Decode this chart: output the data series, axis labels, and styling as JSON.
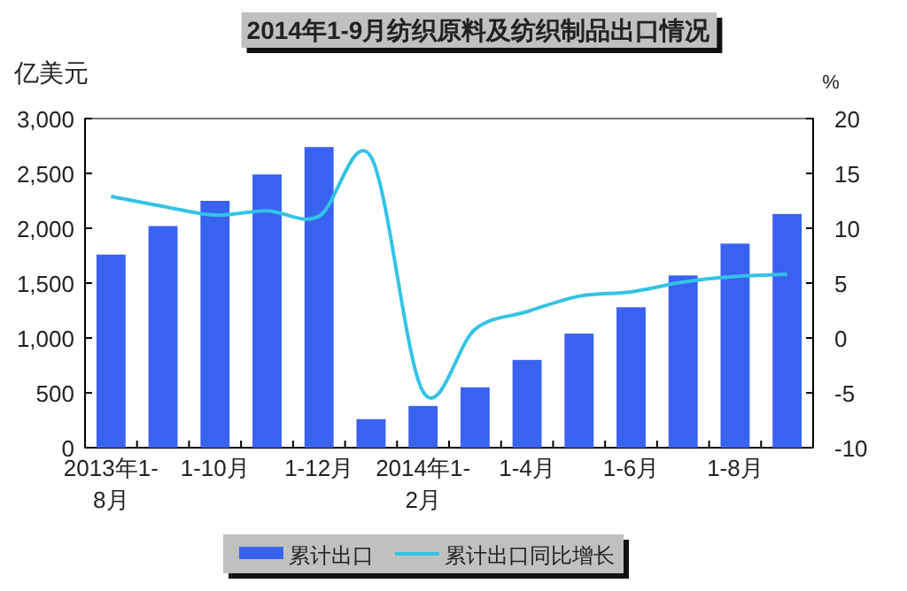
{
  "chart_data": {
    "type": "bar",
    "title": "2014年1-9月纺织原料及纺织制品出口情况",
    "ylabel": "亿美元",
    "y2label": "%",
    "categories": [
      "2013年1-8月",
      null,
      "1-10月",
      null,
      "1-12月",
      null,
      "2014年1-2月",
      null,
      "1-4月",
      null,
      "1-6月",
      null,
      "1-8月",
      null
    ],
    "series": [
      {
        "name": "累计出口",
        "color": "#3a62f0",
        "values": [
          1760,
          2020,
          2250,
          2490,
          2740,
          260,
          380,
          550,
          800,
          1040,
          1280,
          1570,
          1860,
          2130
        ]
      },
      {
        "name": "累计出口同比增长",
        "type": "line",
        "axis": "y2",
        "color": "#33c3e6",
        "values": [
          12.9,
          12.0,
          11.2,
          11.6,
          11.1,
          16.5,
          -4.9,
          0.8,
          2.4,
          3.8,
          4.2,
          5.1,
          5.6,
          5.8
        ]
      }
    ],
    "ylim": [
      0,
      3000
    ],
    "yticks": [
      {
        "value": 0,
        "label": "0"
      },
      {
        "value": 500,
        "label": "500"
      },
      {
        "value": 1000,
        "label": "1,000"
      },
      {
        "value": 1500,
        "label": "1,500"
      },
      {
        "value": 2000,
        "label": "2,000"
      },
      {
        "value": 2500,
        "label": "2,500"
      },
      {
        "value": 3000,
        "label": "3,000"
      }
    ],
    "y2lim": [
      -10,
      20
    ],
    "y2ticks": [
      -10,
      -5,
      0,
      5,
      10,
      15,
      20
    ],
    "legend": "bottom"
  }
}
